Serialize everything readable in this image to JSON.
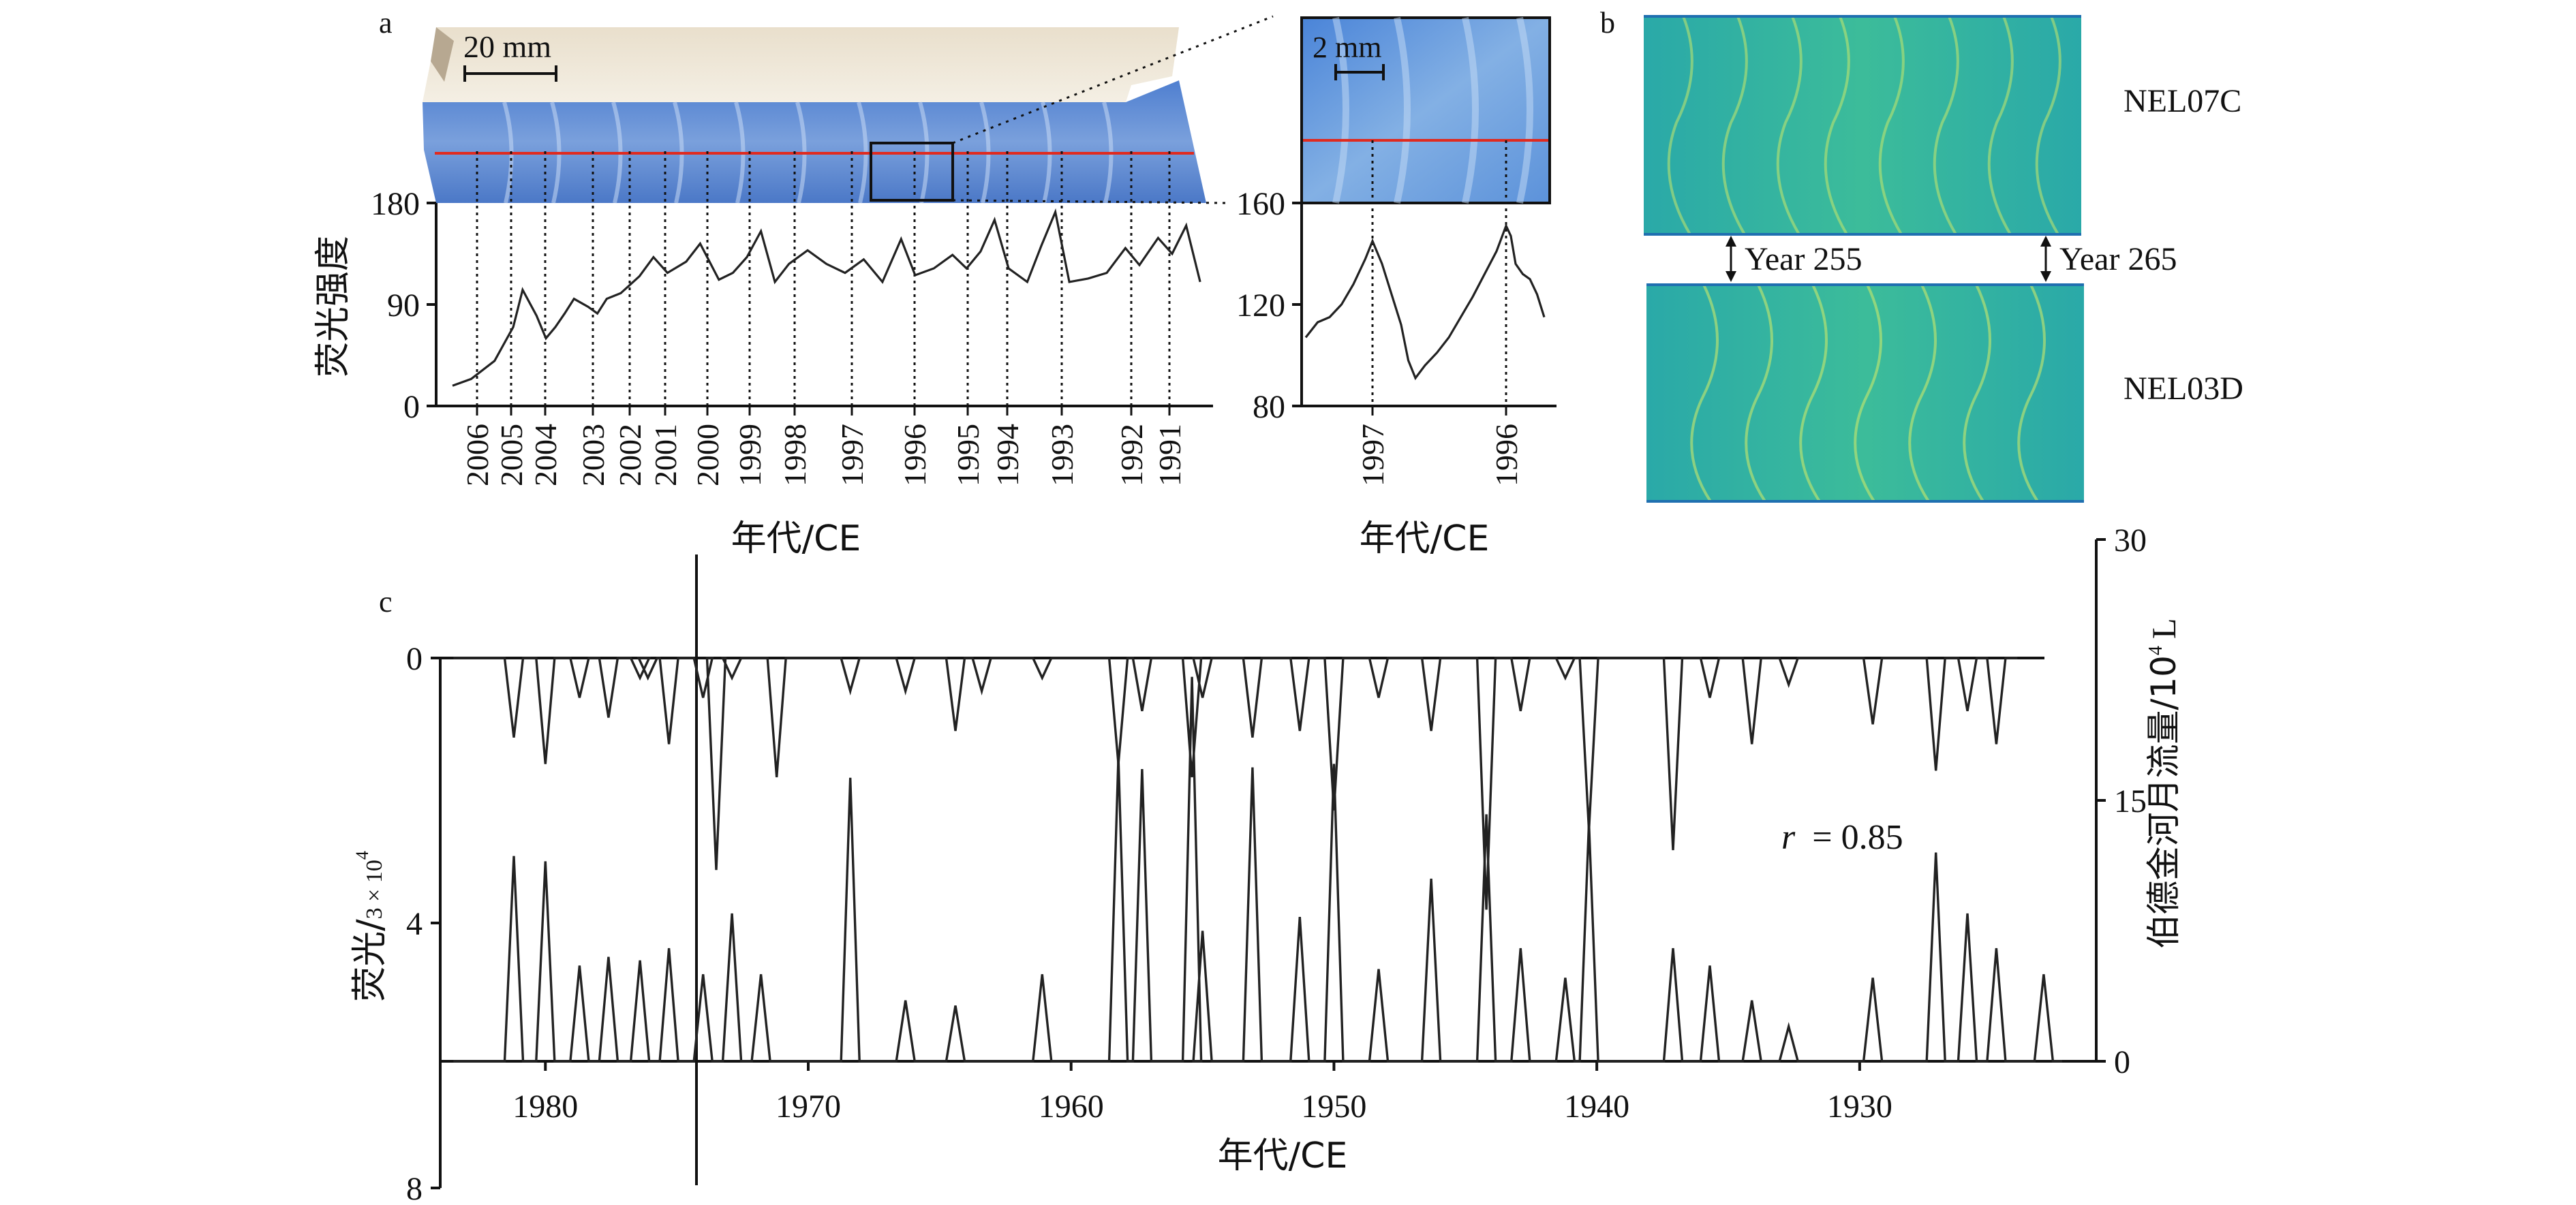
{
  "panel_labels": {
    "a": "a",
    "b": "b",
    "c": "c"
  },
  "scale_bars": {
    "main": "20 mm",
    "zoom": "2 mm"
  },
  "core_images": {
    "top": "NEL07C",
    "bottom": "NEL03D"
  },
  "year_markers": {
    "left": "Year 255",
    "right": "Year 265"
  },
  "correlation": "= 0.85",
  "correlation_symbol": "r",
  "colors": {
    "line": "#222222",
    "core_blue": "#5a86cf",
    "red_line": "#e02a1f",
    "luminescence_green": "#2fb8a4"
  },
  "chart_data": [
    {
      "id": "a-main",
      "type": "line",
      "ylabel": "荧光强度",
      "xlabel": "年代/CE",
      "ylim": [
        0,
        180
      ],
      "yticks": [
        0,
        90,
        180
      ],
      "year_labels": [
        "2006",
        "2005",
        "2004",
        "2003",
        "2002",
        "2001",
        "2000",
        "1999",
        "1998",
        "1997",
        "1996",
        "1995",
        "1994",
        "1993",
        "1992",
        "1991"
      ],
      "points": [
        [
          0,
          18
        ],
        [
          0.4,
          24
        ],
        [
          0.9,
          40
        ],
        [
          1.3,
          70
        ],
        [
          1.5,
          103
        ],
        [
          1.8,
          80
        ],
        [
          2,
          60
        ],
        [
          2.2,
          70
        ],
        [
          2.4,
          82
        ],
        [
          2.6,
          95
        ],
        [
          2.9,
          88
        ],
        [
          3.1,
          82
        ],
        [
          3.3,
          95
        ],
        [
          3.6,
          100
        ],
        [
          4,
          115
        ],
        [
          4.3,
          132
        ],
        [
          4.6,
          118
        ],
        [
          5,
          128
        ],
        [
          5.3,
          144
        ],
        [
          5.7,
          112
        ],
        [
          6,
          118
        ],
        [
          6.3,
          132
        ],
        [
          6.6,
          155
        ],
        [
          6.9,
          110
        ],
        [
          7.2,
          126
        ],
        [
          7.6,
          138
        ],
        [
          8,
          126
        ],
        [
          8.4,
          118
        ],
        [
          8.8,
          130
        ],
        [
          9.2,
          110
        ],
        [
          9.6,
          148
        ],
        [
          9.9,
          116
        ],
        [
          10.3,
          122
        ],
        [
          10.7,
          134
        ],
        [
          11,
          122
        ],
        [
          11.3,
          137
        ],
        [
          11.6,
          165
        ],
        [
          11.9,
          122
        ],
        [
          12.3,
          110
        ],
        [
          12.6,
          142
        ],
        [
          12.9,
          172
        ],
        [
          13.2,
          110
        ],
        [
          13.6,
          113
        ],
        [
          14,
          118
        ],
        [
          14.4,
          140
        ],
        [
          14.7,
          125
        ],
        [
          15.1,
          149
        ],
        [
          15.4,
          135
        ],
        [
          15.7,
          160
        ],
        [
          16,
          110
        ]
      ]
    },
    {
      "id": "a-zoom",
      "type": "line",
      "xlabel": "年代/CE",
      "ylim": [
        80,
        160
      ],
      "yticks": [
        80,
        120,
        160
      ],
      "year_labels": [
        "1997",
        "1996"
      ],
      "points": [
        [
          0,
          107
        ],
        [
          0.05,
          113
        ],
        [
          0.1,
          115
        ],
        [
          0.15,
          120
        ],
        [
          0.2,
          128
        ],
        [
          0.25,
          138
        ],
        [
          0.28,
          145
        ],
        [
          0.32,
          136
        ],
        [
          0.36,
          124
        ],
        [
          0.4,
          112
        ],
        [
          0.43,
          98
        ],
        [
          0.46,
          91
        ],
        [
          0.5,
          96
        ],
        [
          0.55,
          101
        ],
        [
          0.6,
          107
        ],
        [
          0.65,
          115
        ],
        [
          0.7,
          123
        ],
        [
          0.75,
          132
        ],
        [
          0.8,
          141
        ],
        [
          0.84,
          151
        ],
        [
          0.86,
          147
        ],
        [
          0.88,
          136
        ],
        [
          0.91,
          132
        ],
        [
          0.94,
          130
        ],
        [
          0.97,
          124
        ],
        [
          1,
          115
        ]
      ]
    },
    {
      "id": "c",
      "type": "line",
      "xlabel": "年代/CE",
      "ylabel_left": "荧光/",
      "ylabel_left_unit": "3 × 10",
      "ylabel_left_sup": "4",
      "ylabel_right": "伯德金河月流量/10",
      "ylabel_right_sup": "4",
      "ylabel_right_unit": "L",
      "xlim": [
        1984,
        1921
      ],
      "xticks": [
        1980,
        1970,
        1960,
        1950,
        1940,
        1930
      ],
      "ylim_left": [
        0,
        8
      ],
      "yticks_left": [
        0,
        4,
        8
      ],
      "ylim_right": [
        0,
        30
      ],
      "yticks_right": [
        0,
        15,
        30
      ],
      "series": [
        {
          "values_x": [
            1981.2,
            1980.0,
            1978.7,
            1977.6,
            1976.4,
            1976.1,
            1975.3,
            1974.0,
            1973.5,
            1972.9,
            1971.2,
            1968.4,
            1966.3,
            1964.4,
            1963.4,
            1961.1,
            1958.2,
            1957.3,
            1955.4,
            1955.0,
            1953.1,
            1951.3,
            1950.0,
            1948.3,
            1946.3,
            1944.2,
            1942.9,
            1941.2,
            1940.3,
            1937.1,
            1935.7,
            1934.1,
            1932.7,
            1929.5,
            1927.1,
            1925.9,
            1924.8
          ],
          "values_y": [
            1.2,
            1.6,
            0.6,
            0.9,
            0.3,
            0.3,
            1.3,
            0.6,
            3.2,
            0.3,
            1.8,
            0.5,
            0.5,
            1.1,
            0.5,
            0.3,
            1.6,
            0.8,
            1.8,
            0.6,
            1.2,
            1.1,
            2.3,
            0.6,
            1.1,
            3.8,
            0.8,
            0.3,
            2.6,
            2.9,
            0.6,
            1.3,
            0.4,
            1.0,
            1.7,
            0.8,
            1.3
          ]
        },
        {
          "values_x": [
            1981.2,
            1980.0,
            1978.7,
            1977.6,
            1976.4,
            1975.3,
            1974.0,
            1972.9,
            1971.8,
            1968.4,
            1966.3,
            1964.4,
            1961.1,
            1958.2,
            1957.3,
            1955.4,
            1955.0,
            1953.1,
            1951.3,
            1950.0,
            1948.3,
            1946.3,
            1944.2,
            1942.9,
            1941.2,
            1940.3,
            1937.1,
            1935.7,
            1934.1,
            1932.7,
            1929.5,
            1927.1,
            1925.9,
            1924.8,
            1923.0
          ],
          "values_y": [
            11.8,
            11.5,
            5.5,
            6.0,
            5.8,
            6.5,
            5.0,
            8.5,
            5.0,
            16.3,
            3.5,
            3.2,
            5.0,
            17.5,
            16.8,
            22.1,
            7.5,
            16.9,
            8.3,
            17.1,
            5.3,
            10.5,
            14.2,
            6.5,
            4.8,
            13.7,
            6.5,
            5.5,
            3.5,
            2.0,
            4.8,
            12.0,
            8.5,
            6.5,
            5.0
          ]
        }
      ]
    }
  ]
}
